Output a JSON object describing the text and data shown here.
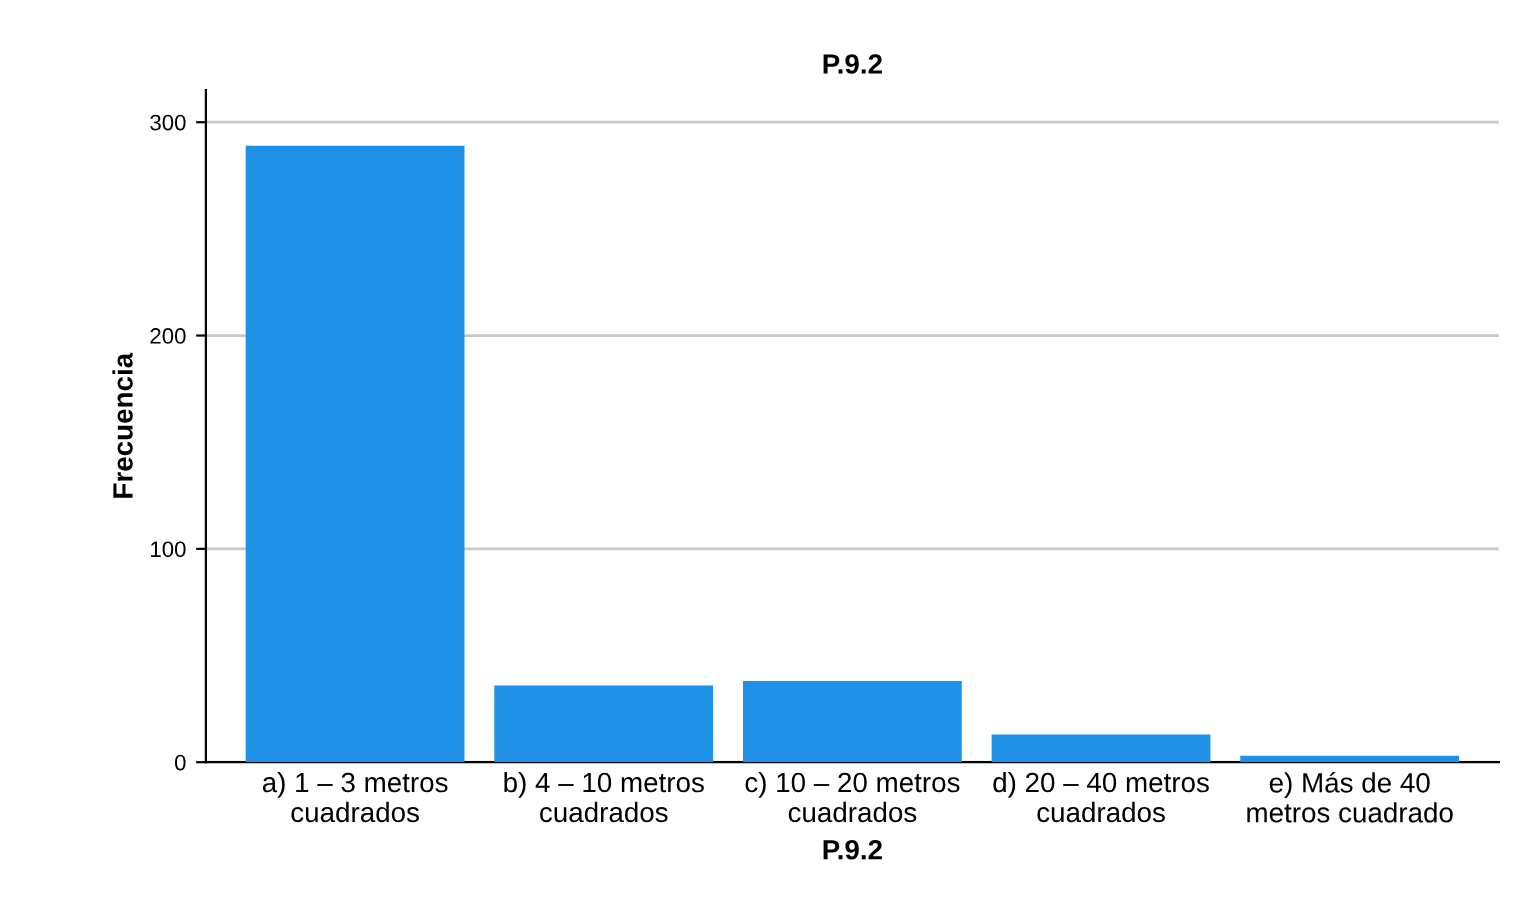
{
  "chart_data": {
    "type": "bar",
    "title": "P.9.2",
    "xlabel": "P.9.2",
    "ylabel": "Frecuencia",
    "categories": [
      "a) 1 – 3 metros\ncuadrados",
      "b) 4 – 10 metros\ncuadrados",
      "c) 10 – 20 metros\ncuadrados",
      "d) 20 – 40 metros\ncuadrados",
      "e) Más de 40\nmetros cuadrado"
    ],
    "values": [
      289,
      36,
      38,
      13,
      3
    ],
    "color": "#1e90e6",
    "ylim": [
      0,
      315
    ],
    "yticks": [
      0,
      100,
      200,
      300
    ],
    "grid": "y",
    "legend": false
  }
}
